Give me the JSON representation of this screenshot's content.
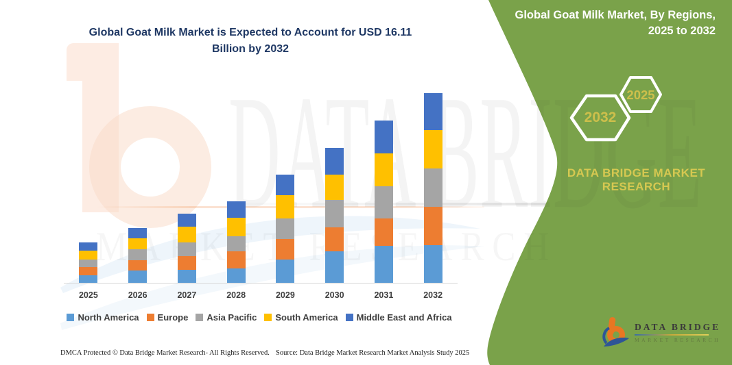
{
  "chart_title": {
    "line1": "Global Goat Milk Market is Expected to Account for USD 16.11",
    "line2": "Billion by 2032"
  },
  "chart_data": {
    "type": "bar",
    "stacked": true,
    "unit": "USD Billion",
    "title": "Global Goat Milk Market is Expected to Account for USD 16.11 Billion by 2032",
    "categories": [
      "2025",
      "2026",
      "2027",
      "2028",
      "2029",
      "2030",
      "2031",
      "2032"
    ],
    "series": [
      {
        "name": "North America",
        "color": "#5B9BD5",
        "values": [
          0.62,
          1.07,
          1.11,
          1.22,
          1.98,
          2.68,
          3.14,
          3.21
        ]
      },
      {
        "name": "Europe",
        "color": "#ED7D31",
        "values": [
          0.74,
          0.87,
          1.18,
          1.46,
          1.75,
          2.02,
          2.33,
          3.24
        ]
      },
      {
        "name": "Asia Pacific",
        "color": "#A5A5A5",
        "values": [
          0.62,
          0.91,
          1.16,
          1.26,
          1.75,
          2.33,
          2.77,
          3.3
        ]
      },
      {
        "name": "South America",
        "color": "#FFC000",
        "values": [
          0.78,
          0.93,
          1.3,
          1.6,
          2.0,
          2.2,
          2.78,
          3.22
        ]
      },
      {
        "name": "Middle East and Africa",
        "color": "#4472C4",
        "values": [
          0.68,
          0.87,
          1.11,
          1.42,
          1.71,
          2.27,
          2.76,
          3.14
        ]
      }
    ],
    "totals": [
      3.44,
      4.65,
      5.86,
      6.96,
      9.19,
      11.5,
      13.78,
      16.11
    ],
    "ylim": [
      0,
      16.5
    ],
    "gridlines": false,
    "legend_position": "bottom"
  },
  "watermark": {
    "line1": "DATA BRIDGE",
    "line2": "MARKET RESEARCH"
  },
  "side_panel": {
    "green": "#7AA24A",
    "accent_yellow": "#CDBF4B",
    "title_line1": "Global Goat Milk Market, By Regions,",
    "title_line2": "2025 to 2032",
    "hexagons": [
      {
        "label": "2032"
      },
      {
        "label": "2025"
      }
    ],
    "brand_line1": "DATA BRIDGE MARKET",
    "brand_line2": "RESEARCH"
  },
  "footer": {
    "left": "DMCA Protected © Data Bridge Market Research-  All Rights Reserved.",
    "right": "Source: Data Bridge Market Research  Market Analysis Study 2025"
  },
  "logo": {
    "name": "DATA BRIDGE",
    "sub": "MARKET RESEARCH"
  }
}
